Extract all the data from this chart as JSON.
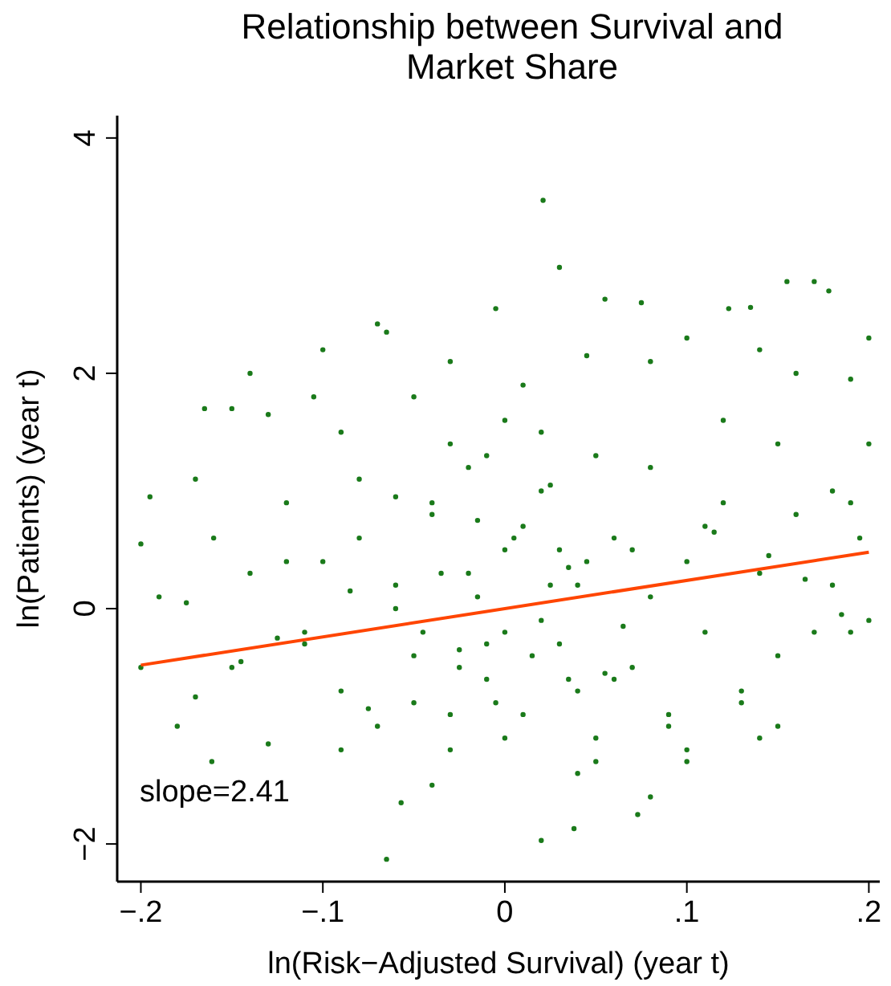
{
  "chart_data": {
    "type": "scatter",
    "title": "Relationship between Survival and Market Share",
    "xlabel": "ln(Risk−Adjusted Survival) (year t)",
    "ylabel": "ln(Patients) (year t)",
    "xlim": [
      -0.213,
      0.206
    ],
    "ylim": [
      -2.32,
      4.19
    ],
    "xticks": [
      {
        "value": -0.2,
        "label": "−.2"
      },
      {
        "value": -0.1,
        "label": "−.1"
      },
      0,
      {
        "value": 0.1,
        "label": ".1"
      },
      {
        "value": 0.2,
        "label": ".2"
      }
    ],
    "yticks": [
      {
        "value": -2,
        "label": "−2"
      },
      0,
      2,
      4
    ],
    "grid": false,
    "marker": "circle",
    "annotations": [
      "slope=2.41"
    ],
    "series": [
      {
        "color": "#1a7a1a",
        "x": [
          0.021,
          -0.07,
          -0.065,
          0.03,
          0.055,
          0.075,
          0.123,
          0.135,
          0.155,
          0.17,
          0.178,
          0.2,
          -0.1,
          -0.14,
          -0.15,
          -0.165,
          -0.13,
          -0.03,
          -0.005,
          0.045,
          0.1,
          0.14,
          0.16,
          0.19,
          0.08,
          0.01,
          -0.05,
          -0.09,
          0.12,
          0.15,
          0.2,
          0.18,
          0.195,
          -0.195,
          -0.2,
          -0.19,
          -0.2,
          -0.17,
          -0.15,
          -0.13,
          -0.18,
          -0.16,
          -0.17,
          -0.14,
          -0.12,
          -0.11,
          -0.1,
          -0.09,
          -0.08,
          -0.07,
          -0.06,
          -0.05,
          -0.04,
          -0.03,
          -0.02,
          -0.01,
          0,
          0,
          0.01,
          0.02,
          0.03,
          0.04,
          0.05,
          0.06,
          0.07,
          0.08,
          0.09,
          0.1,
          0.11,
          0.12,
          0.13,
          0.14,
          0.15,
          0.16,
          0.17,
          0.18,
          0.19,
          0.2,
          -0.065,
          0.02,
          0.038,
          0.073,
          0.14,
          0.1,
          0.08,
          0.05,
          -0.04,
          -0.09,
          -0.161,
          -0.057,
          0.15,
          0.19,
          -0.045,
          -0.035,
          -0.025,
          -0.015,
          -0.005,
          0.005,
          0.015,
          0.025,
          0.035,
          0.045,
          -0.04,
          -0.03,
          -0.02,
          -0.01,
          0,
          0.01,
          0.02,
          0.03,
          0.04,
          0.05,
          -0.06,
          0.06,
          -0.05,
          0.07,
          -0.08,
          0.09,
          -0.11,
          0.11,
          -0.12,
          0.13,
          -0.03,
          0.02,
          0.0,
          -0.01,
          0.04,
          -0.06,
          0.08,
          0.1,
          -0.085,
          0.065,
          -0.025,
          0.035,
          0.115,
          -0.125,
          0.145,
          -0.145,
          0.165,
          -0.175,
          0.185,
          -0.105,
          0.055,
          -0.015,
          0.025,
          -0.075
        ],
        "values": [
          3.47,
          2.42,
          2.35,
          2.9,
          2.63,
          2.6,
          2.55,
          2.56,
          2.78,
          2.78,
          2.7,
          2.3,
          2.2,
          2.0,
          1.7,
          1.7,
          1.65,
          2.1,
          2.55,
          2.15,
          2.3,
          2.2,
          2.0,
          1.95,
          2.1,
          1.9,
          1.8,
          1.5,
          1.6,
          1.4,
          1.4,
          1.0,
          0.6,
          0.95,
          0.55,
          0.1,
          -0.5,
          -0.75,
          -0.5,
          -1.15,
          -1.0,
          0.6,
          1.1,
          0.3,
          0.9,
          -0.2,
          0.4,
          -0.7,
          1.1,
          -1.0,
          0.0,
          -0.4,
          0.8,
          -1.2,
          0.3,
          -0.6,
          0.5,
          -0.2,
          -0.9,
          1.0,
          -0.3,
          0.2,
          -1.1,
          0.6,
          -0.5,
          0.1,
          -0.9,
          0.4,
          -0.2,
          0.9,
          -0.7,
          0.3,
          -0.4,
          0.8,
          -0.2,
          0.2,
          0.9,
          -0.1,
          -2.13,
          -1.97,
          -1.87,
          -1.75,
          -1.1,
          -1.3,
          -1.6,
          -1.3,
          -1.5,
          -1.2,
          -1.3,
          -1.65,
          -1.0,
          -0.2,
          -0.2,
          0.3,
          -0.5,
          0.1,
          -0.8,
          0.6,
          -0.4,
          0.2,
          -0.6,
          0.4,
          0.9,
          -0.9,
          1.2,
          -0.3,
          -1.1,
          0.7,
          -0.1,
          0.5,
          -0.7,
          1.3,
          0.2,
          -0.6,
          -0.8,
          0.5,
          0.6,
          -1.0,
          -0.3,
          0.7,
          0.4,
          -0.8,
          1.4,
          1.5,
          1.6,
          1.3,
          -1.4,
          0.95,
          1.2,
          -1.2,
          0.15,
          -0.15,
          -0.35,
          0.35,
          0.65,
          -0.25,
          0.45,
          -0.45,
          0.25,
          0.05,
          -0.05,
          1.8,
          -0.55,
          0.75,
          1.05,
          -0.85
        ]
      },
      {
        "type": "line",
        "color": "#ff4500",
        "x": [
          -0.2,
          0.2
        ],
        "values": [
          -0.48,
          0.48
        ],
        "marker": "none"
      }
    ]
  }
}
